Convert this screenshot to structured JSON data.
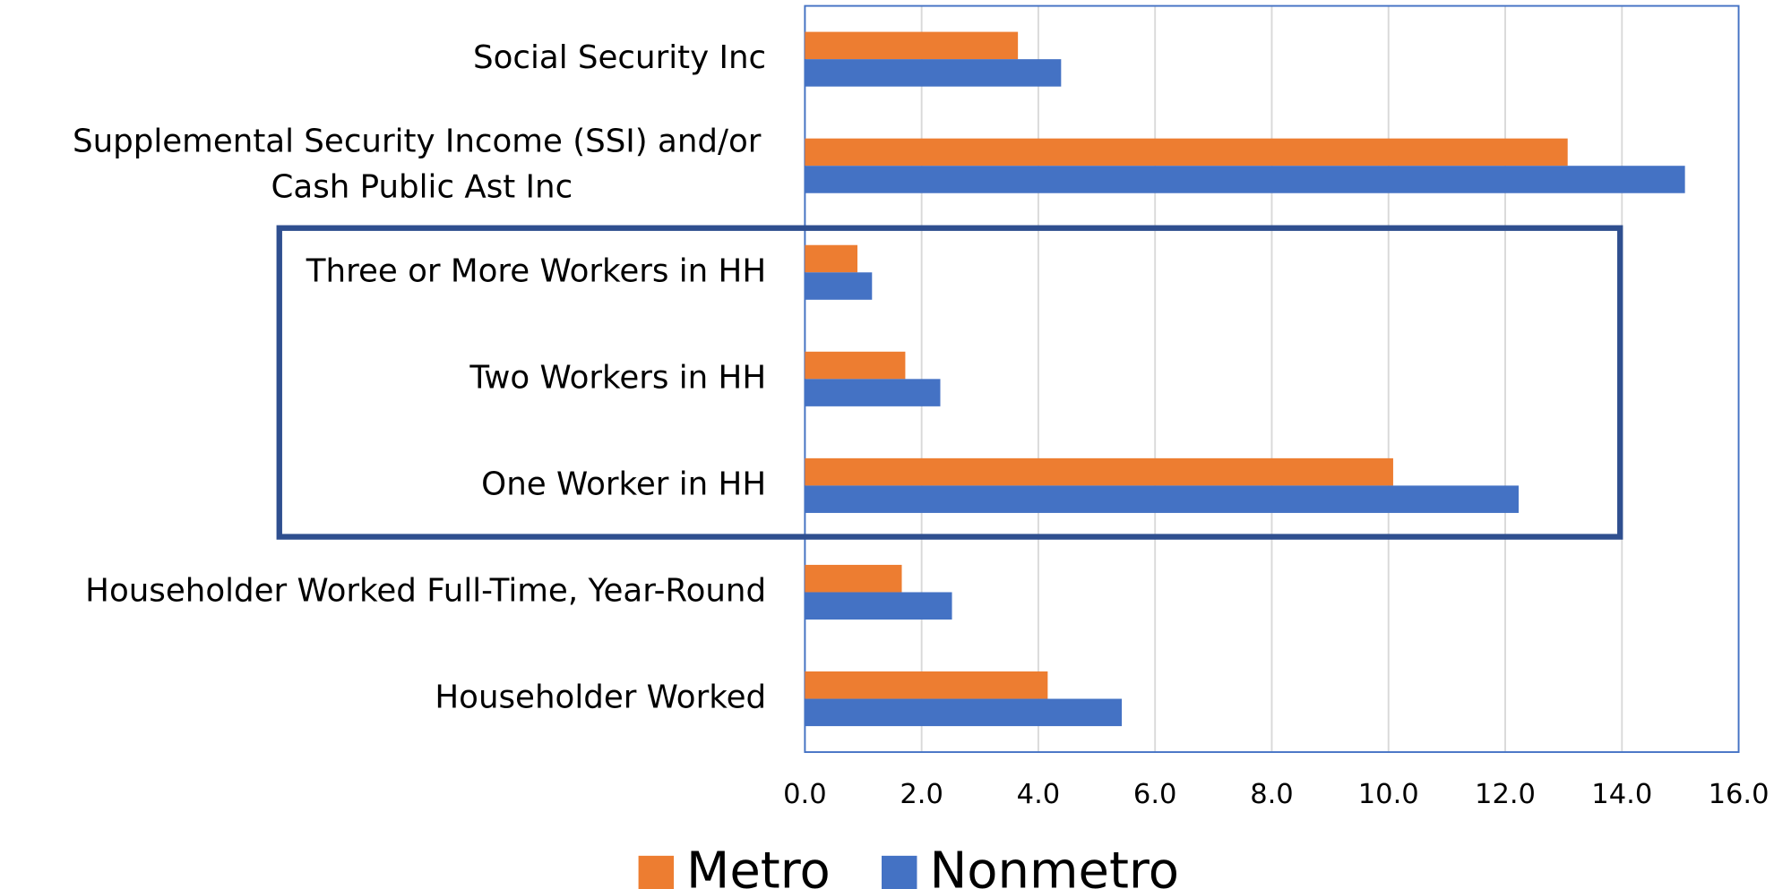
{
  "chart_data": {
    "type": "bar",
    "orientation": "horizontal",
    "categories": [
      "Social Security Inc",
      "Supplemental Security Income (SSI) and/or Cash Public Ast Inc",
      "Three or More Workers in HH",
      "Two Workers in HH",
      "One Worker in HH",
      "Householder Worked Full-Time, Year-Round",
      "Householder Worked"
    ],
    "series": [
      {
        "name": "Metro",
        "color": "#ed7d31",
        "values": [
          3.65,
          13.07,
          0.9,
          1.72,
          10.08,
          1.66,
          4.16
        ]
      },
      {
        "name": "Nonmetro",
        "color": "#4472c4",
        "values": [
          4.39,
          15.08,
          1.15,
          2.32,
          12.23,
          2.52,
          5.43
        ]
      }
    ],
    "xlim": [
      0,
      16
    ],
    "xticks": [
      {
        "value": 0,
        "label": "0.0"
      },
      {
        "value": 2,
        "label": "2.0"
      },
      {
        "value": 4,
        "label": "4.0"
      },
      {
        "value": 6,
        "label": "6.0"
      },
      {
        "value": 8,
        "label": "8.0"
      },
      {
        "value": 10,
        "label": "10.0"
      },
      {
        "value": 12,
        "label": "12.0"
      },
      {
        "value": 14,
        "label": "14.0"
      },
      {
        "value": 16,
        "label": "16.0"
      }
    ],
    "grid": true,
    "legend": "bottom"
  }
}
